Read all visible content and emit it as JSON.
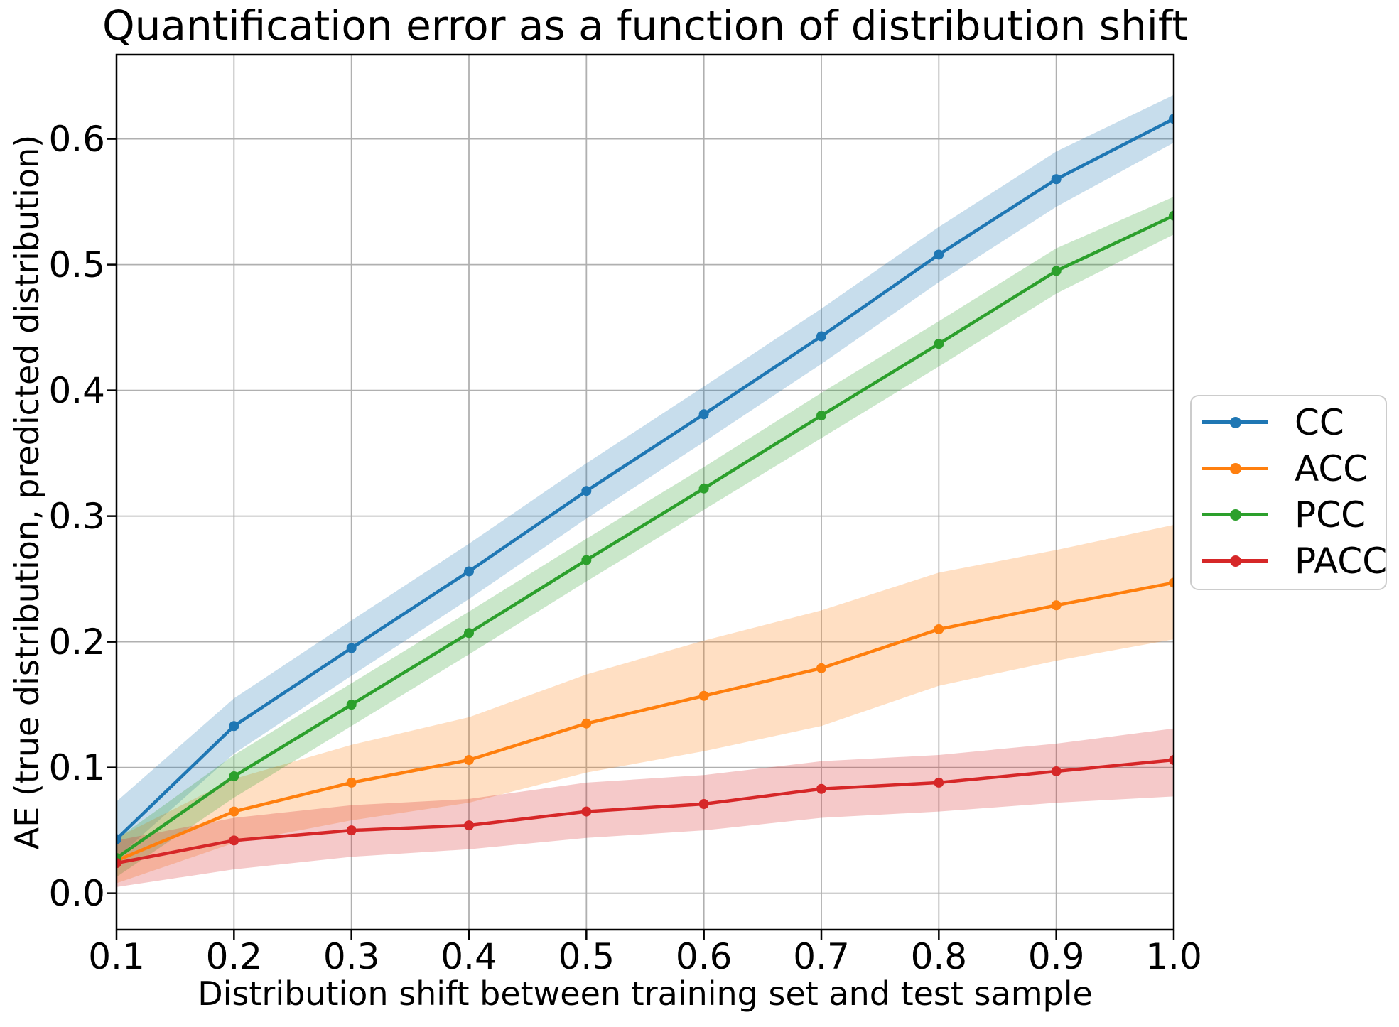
{
  "chart_data": {
    "type": "line",
    "title": "Quantification error as a function of distribution shift",
    "xlabel": "Distribution shift between training set and test sample",
    "ylabel": "AE (true distribution, predicted distribution)",
    "x": [
      0.1,
      0.2,
      0.3,
      0.4,
      0.5,
      0.6,
      0.7,
      0.8,
      0.9,
      1.0
    ],
    "x_tick_labels": [
      "0.1",
      "0.2",
      "0.3",
      "0.4",
      "0.5",
      "0.6",
      "0.7",
      "0.8",
      "0.9",
      "1.0"
    ],
    "y_tick_values": [
      0.0,
      0.1,
      0.2,
      0.3,
      0.4,
      0.5,
      0.6
    ],
    "y_tick_labels": [
      "0.0",
      "0.1",
      "0.2",
      "0.3",
      "0.4",
      "0.5",
      "0.6"
    ],
    "xlim": [
      0.1,
      1.0
    ],
    "ylim": [
      -0.029,
      0.667
    ],
    "grid": true,
    "grid_color": "#b0b0b0",
    "spine_color": "#000000",
    "band_alpha": 0.25,
    "legend_position": "outside-right",
    "series": [
      {
        "name": "CC",
        "color": "#1f77b4",
        "values": [
          0.043,
          0.133,
          0.195,
          0.256,
          0.32,
          0.381,
          0.443,
          0.508,
          0.568,
          0.616
        ],
        "band_lower": [
          0.028,
          0.111,
          0.173,
          0.234,
          0.298,
          0.359,
          0.421,
          0.486,
          0.546,
          0.597
        ],
        "band_upper": [
          0.073,
          0.155,
          0.217,
          0.278,
          0.342,
          0.403,
          0.465,
          0.53,
          0.59,
          0.635
        ]
      },
      {
        "name": "ACC",
        "color": "#ff7f0e",
        "values": [
          0.026,
          0.065,
          0.088,
          0.106,
          0.135,
          0.157,
          0.179,
          0.21,
          0.229,
          0.247
        ],
        "band_lower": [
          0.008,
          0.04,
          0.058,
          0.072,
          0.096,
          0.113,
          0.133,
          0.165,
          0.185,
          0.202
        ],
        "band_upper": [
          0.044,
          0.091,
          0.118,
          0.14,
          0.174,
          0.201,
          0.225,
          0.255,
          0.273,
          0.293
        ]
      },
      {
        "name": "PCC",
        "color": "#2ca02c",
        "values": [
          0.028,
          0.093,
          0.15,
          0.207,
          0.265,
          0.322,
          0.38,
          0.437,
          0.495,
          0.539
        ],
        "band_lower": [
          0.013,
          0.076,
          0.133,
          0.19,
          0.248,
          0.305,
          0.362,
          0.419,
          0.477,
          0.524
        ],
        "band_upper": [
          0.043,
          0.11,
          0.167,
          0.224,
          0.282,
          0.339,
          0.398,
          0.455,
          0.513,
          0.554
        ]
      },
      {
        "name": "PACC",
        "color": "#d62728",
        "values": [
          0.024,
          0.042,
          0.05,
          0.054,
          0.065,
          0.071,
          0.083,
          0.088,
          0.097,
          0.106
        ],
        "band_lower": [
          0.005,
          0.019,
          0.029,
          0.035,
          0.044,
          0.05,
          0.06,
          0.065,
          0.072,
          0.077
        ],
        "band_upper": [
          0.042,
          0.06,
          0.07,
          0.075,
          0.088,
          0.094,
          0.105,
          0.11,
          0.119,
          0.131
        ]
      }
    ]
  }
}
